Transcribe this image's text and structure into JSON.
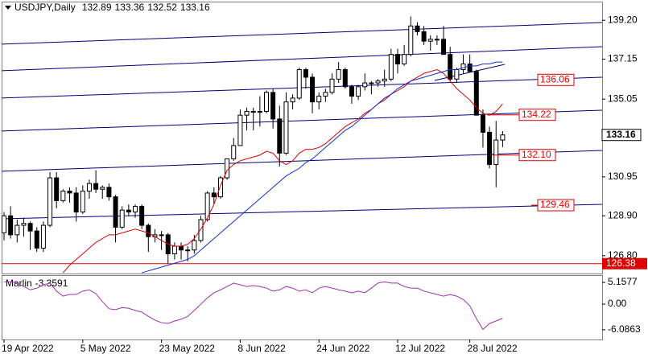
{
  "chart_data": {
    "type": "candlestick",
    "symbol": "USDJPY,Daily",
    "categories": [
      "19 Apr 2022",
      null,
      null,
      null,
      null,
      null,
      null,
      null,
      null,
      null,
      null,
      null,
      "5 May 2022",
      null,
      null,
      null,
      null,
      null,
      null,
      null,
      null,
      null,
      null,
      null,
      "23 May 2022",
      null,
      null,
      null,
      null,
      null,
      null,
      null,
      null,
      null,
      null,
      null,
      "8 Jun 2022",
      null,
      null,
      null,
      null,
      null,
      null,
      null,
      null,
      null,
      null,
      null,
      "24 Jun 2022",
      null,
      null,
      null,
      null,
      null,
      null,
      null,
      null,
      null,
      null,
      null,
      "12 Jul 2022",
      null,
      null,
      null,
      null,
      null,
      null,
      null,
      null,
      null,
      null,
      "28 Jul 2022",
      null,
      null,
      null,
      null,
      null
    ],
    "open": [
      128.0,
      128.9,
      127.9,
      128.4,
      128.5,
      128.1,
      127.2,
      128.4,
      130.9,
      129.7,
      130.2,
      130.1,
      129.1,
      130.2,
      130.6,
      130.3,
      130.4,
      129.9,
      128.3,
      129.2,
      129.1,
      129.4,
      128.4,
      127.8,
      127.9,
      127.9,
      126.9,
      127.3,
      127.1,
      127.1,
      127.6,
      128.7,
      130.1,
      129.9,
      130.9,
      131.9,
      132.6,
      134.2,
      134.4,
      134.4,
      134.4,
      135.4,
      134.0,
      132.2,
      134.9,
      135.1,
      136.6,
      136.2,
      134.9,
      135.2,
      135.4,
      136.1,
      136.6,
      135.7,
      135.2,
      135.7,
      135.9,
      135.9,
      136.0,
      136.1,
      137.4,
      136.9,
      137.4,
      138.9,
      138.6,
      138.1,
      138.2,
      138.2,
      137.4,
      136.1,
      136.6,
      136.9,
      136.5,
      134.2,
      133.3,
      131.6,
      132.89
    ],
    "high": [
      129.1,
      129.4,
      128.7,
      128.8,
      128.6,
      128.3,
      128.6,
      131.2,
      131.2,
      130.3,
      130.4,
      130.4,
      130.5,
      130.8,
      131.3,
      130.5,
      130.6,
      130.0,
      129.4,
      129.5,
      129.5,
      129.5,
      128.5,
      128.2,
      128.1,
      128.0,
      127.5,
      127.5,
      127.3,
      127.9,
      128.9,
      130.2,
      130.4,
      131.0,
      131.9,
      133.0,
      134.5,
      134.6,
      134.6,
      135.2,
      135.5,
      135.6,
      134.7,
      135.4,
      135.3,
      136.7,
      136.7,
      136.4,
      135.4,
      135.6,
      136.4,
      137.0,
      136.7,
      135.8,
      135.8,
      136.4,
      136.0,
      136.1,
      136.6,
      137.7,
      137.7,
      137.9,
      139.4,
      139.1,
      138.9,
      138.4,
      138.4,
      138.9,
      137.8,
      136.7,
      137.4,
      137.4,
      136.6,
      134.5,
      133.6,
      133.9,
      133.36
    ],
    "low": [
      127.6,
      127.7,
      127.5,
      127.8,
      127.1,
      127.0,
      127.0,
      128.3,
      129.3,
      129.6,
      129.6,
      128.6,
      129.0,
      129.8,
      130.1,
      129.8,
      129.7,
      127.5,
      128.2,
      128.9,
      128.8,
      128.2,
      127.0,
      127.5,
      127.1,
      126.38,
      126.6,
      126.6,
      126.5,
      126.9,
      127.5,
      128.6,
      129.5,
      129.8,
      130.8,
      131.8,
      132.6,
      133.4,
      133.4,
      133.6,
      134.3,
      133.5,
      131.5,
      132.1,
      134.5,
      135.0,
      135.6,
      134.3,
      134.5,
      134.9,
      135.3,
      135.9,
      135.6,
      134.8,
      135.0,
      135.5,
      135.3,
      135.7,
      135.7,
      136.0,
      136.4,
      136.8,
      137.3,
      138.4,
      137.9,
      137.6,
      137.9,
      137.4,
      136.0,
      135.9,
      136.4,
      136.5,
      134.2,
      132.5,
      131.4,
      130.4,
      132.52
    ],
    "close": [
      128.9,
      127.9,
      128.4,
      128.5,
      128.1,
      127.2,
      128.4,
      130.9,
      129.7,
      130.2,
      130.1,
      129.1,
      130.2,
      130.6,
      130.3,
      130.4,
      129.9,
      128.3,
      129.2,
      129.1,
      129.4,
      128.4,
      127.8,
      127.9,
      127.9,
      126.9,
      127.3,
      127.1,
      127.1,
      127.6,
      128.7,
      130.1,
      129.9,
      130.9,
      131.9,
      132.6,
      134.2,
      134.4,
      134.4,
      134.4,
      135.4,
      134.0,
      132.2,
      134.9,
      135.1,
      136.6,
      136.2,
      134.9,
      135.2,
      135.4,
      136.1,
      136.6,
      135.7,
      135.2,
      135.7,
      135.9,
      135.9,
      136.0,
      136.1,
      137.4,
      136.9,
      137.4,
      138.9,
      138.6,
      138.1,
      138.2,
      138.2,
      137.4,
      136.1,
      136.6,
      136.9,
      136.5,
      134.2,
      133.3,
      131.6,
      132.89,
      133.16
    ],
    "up_color": "#ffffff",
    "down_color": "#000000",
    "ylim": [
      125.86,
      140.14
    ],
    "yticks": [
      {
        "value": 139.2,
        "label": "139.20"
      },
      137.15,
      135.05,
      130.95,
      {
        "value": 128.9,
        "label": "128.90"
      },
      {
        "value": 126.8,
        "label": "126.80"
      }
    ],
    "overlays": [
      {
        "color": "#e00000",
        "values": [
          null,
          null,
          null,
          null,
          null,
          null,
          null,
          null,
          null,
          125.9,
          126.3,
          126.6,
          126.9,
          127.2,
          127.5,
          127.7,
          127.9,
          127.9,
          128.0,
          128.1,
          128.2,
          128.1,
          128.0,
          127.8,
          127.6,
          127.4,
          127.3,
          127.3,
          127.4,
          127.7,
          128.2,
          128.8,
          129.5,
          130.5,
          131.3,
          131.6,
          131.8,
          131.9,
          132.0,
          132.1,
          132.3,
          132.2,
          131.8,
          131.6,
          131.8,
          132.2,
          132.4,
          132.4,
          132.5,
          132.7,
          133.0,
          133.3,
          133.6,
          133.8,
          134.0,
          134.3,
          134.5,
          134.8,
          135.0,
          135.3,
          135.5,
          135.7,
          136.0,
          136.2,
          136.4,
          136.5,
          136.6,
          136.4,
          136.0,
          135.6,
          135.3,
          135.0,
          134.6,
          134.3,
          134.2,
          134.4,
          134.8
        ]
      },
      {
        "color": "#1030d0",
        "values": [
          null,
          null,
          null,
          null,
          null,
          null,
          null,
          null,
          null,
          null,
          null,
          null,
          null,
          null,
          null,
          null,
          null,
          null,
          null,
          null,
          null,
          125.9,
          126.0,
          126.1,
          126.2,
          126.3,
          126.4,
          126.5,
          126.6,
          126.8,
          127.1,
          127.4,
          127.7,
          128.0,
          128.3,
          128.6,
          128.9,
          129.2,
          129.5,
          129.8,
          130.1,
          130.4,
          130.7,
          131.0,
          131.2,
          131.4,
          131.7,
          131.9,
          132.2,
          132.5,
          132.8,
          133.1,
          133.4,
          133.6,
          133.9,
          134.2,
          134.5,
          134.8,
          135.1,
          135.3,
          135.6,
          135.8,
          136.0,
          136.1,
          136.2,
          136.3,
          136.4,
          136.5,
          136.6,
          136.6,
          136.7,
          136.8,
          136.8,
          136.9,
          136.9,
          137.0,
          137.0
        ]
      }
    ],
    "levels": [
      136.06,
      134.22,
      {
        "value": 132.1,
        "label": "132.10"
      },
      129.46
    ],
    "level_color": "#e00000",
    "support_line": {
      "value": 126.38,
      "color": "#e00000"
    },
    "indicator": {
      "name": "Marlin",
      "color": "#a030b0",
      "values": [
        5.3,
        5.3,
        5.0,
        4.2,
        3.4,
        3.8,
        4.6,
        5.0,
        3.1,
        1.9,
        2.3,
        2.3,
        3.1,
        3.4,
        2.5,
        0.6,
        -1.1,
        -1.3,
        -0.8,
        -1.0,
        -1.5,
        -1.9,
        -2.9,
        -3.8,
        -4.4,
        -4.6,
        -4.0,
        -3.6,
        -2.9,
        -1.5,
        0,
        1.5,
        2.7,
        3.4,
        4.2,
        5.0,
        4.6,
        4.2,
        4.4,
        4.2,
        3.8,
        3.1,
        3.4,
        4.2,
        3.8,
        3.1,
        3.4,
        2.7,
        3.8,
        4.2,
        3.8,
        3.4,
        3.1,
        2.7,
        3.1,
        2.7,
        3.8,
        5.0,
        5.3,
        5.0,
        5.0,
        4.2,
        3.8,
        3.8,
        3.1,
        2.7,
        2.3,
        1.9,
        2.3,
        1.9,
        1.1,
        -0.4,
        -3.4,
        -6.0,
        -4.6,
        -4.0,
        -3.3591
      ],
      "ylim": [
        -8.4,
        6.7
      ],
      "yticks": [
        5.1577,
        {
          "value": 0,
          "label": "0.00"
        },
        -6.0863
      ]
    }
  }
}
